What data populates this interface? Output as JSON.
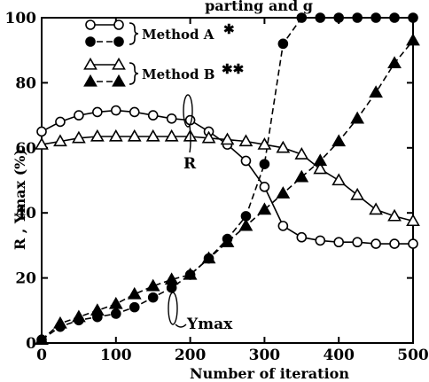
{
  "chart_data": {
    "type": "line",
    "title_fragment": "parting and g",
    "xlabel": "Number of iteration",
    "ylabel": "R , Ymax (%)",
    "xlim": [
      0,
      500
    ],
    "ylim": [
      0,
      100
    ],
    "x_ticks": [
      "0",
      "100",
      "200",
      "300",
      "400",
      "500"
    ],
    "y_ticks": [
      "0",
      "20",
      "40",
      "60",
      "80",
      "100"
    ],
    "grid": false,
    "legend_position": "top-left",
    "legend": [
      {
        "group": "Method A",
        "marker": "✱",
        "entries": [
          "R",
          "Ymax"
        ]
      },
      {
        "group": "Method B",
        "marker": "✱✱",
        "entries": [
          "R",
          "Ymax"
        ]
      }
    ],
    "annotations": [
      {
        "text": "R",
        "x": 200,
        "y": 48
      },
      {
        "text": "Ymax",
        "x": 215,
        "y": 12
      }
    ],
    "series": [
      {
        "name": "Method A R",
        "marker": "circle-open",
        "line": "solid",
        "x": [
          0,
          25,
          50,
          75,
          100,
          125,
          150,
          175,
          200,
          225,
          250,
          275,
          300,
          325,
          350,
          375,
          400,
          425,
          450,
          475,
          500
        ],
        "y": [
          65,
          68,
          70,
          71,
          71.5,
          71,
          70,
          69,
          68.5,
          65,
          61,
          56,
          48,
          36,
          32.5,
          31.5,
          31,
          31,
          30.5,
          30.5,
          30.5
        ]
      },
      {
        "name": "Method A Ymax",
        "marker": "circle-filled",
        "line": "dashed",
        "x": [
          0,
          25,
          50,
          75,
          100,
          125,
          150,
          175,
          200,
          225,
          250,
          275,
          300,
          325,
          350,
          375,
          400,
          425,
          450,
          475,
          500
        ],
        "y": [
          1,
          5,
          7,
          8,
          9,
          11,
          14,
          17,
          21,
          26,
          32,
          39,
          55,
          92,
          100,
          100,
          100,
          100,
          100,
          100,
          100
        ]
      },
      {
        "name": "Method B R",
        "marker": "triangle-open",
        "line": "solid",
        "x": [
          0,
          25,
          50,
          75,
          100,
          125,
          150,
          175,
          200,
          225,
          250,
          275,
          300,
          325,
          350,
          375,
          400,
          425,
          450,
          475,
          500
        ],
        "y": [
          61,
          62,
          63,
          63.5,
          63.5,
          63.5,
          63.5,
          63.5,
          63.5,
          63,
          62.5,
          62,
          61,
          60,
          58,
          53.5,
          50,
          45.5,
          41,
          39,
          37.5
        ]
      },
      {
        "name": "Method B Ymax",
        "marker": "triangle-filled",
        "line": "dashed",
        "x": [
          0,
          25,
          50,
          75,
          100,
          125,
          150,
          175,
          200,
          225,
          250,
          275,
          300,
          325,
          350,
          375,
          400,
          425,
          450,
          475,
          500
        ],
        "y": [
          1,
          6,
          8,
          10,
          12,
          15,
          17.5,
          19.5,
          21,
          26,
          31,
          36,
          41,
          46,
          51,
          56,
          62,
          69,
          77,
          86,
          93
        ]
      }
    ]
  }
}
